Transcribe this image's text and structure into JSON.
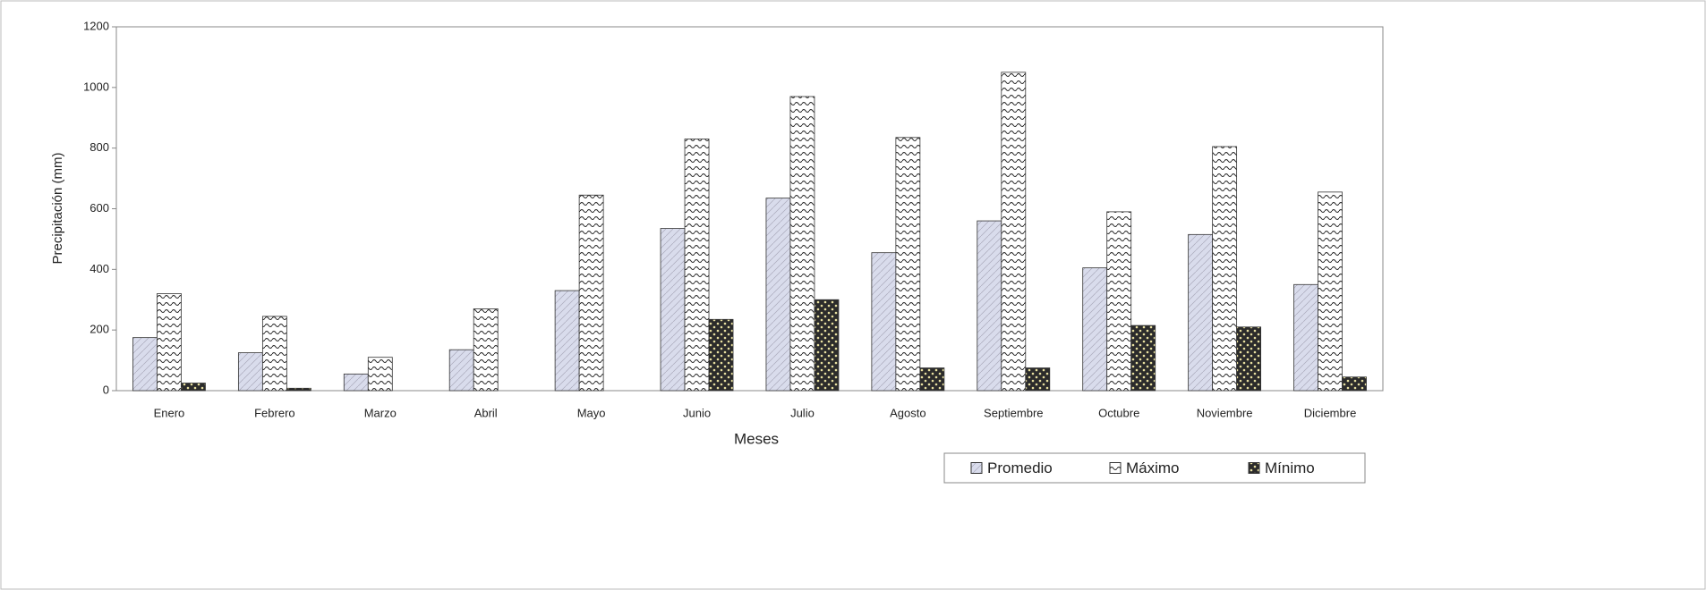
{
  "chart_data": {
    "type": "bar",
    "xlabel": "Meses",
    "ylabel": "Precipitación (mm)",
    "categories": [
      "Enero",
      "Febrero",
      "Marzo",
      "Abril",
      "Mayo",
      "Junio",
      "Julio",
      "Agosto",
      "Septiembre",
      "Octubre",
      "Noviembre",
      "Diciembre"
    ],
    "series": [
      {
        "name": "Promedio",
        "color": "#d9dcec",
        "values": [
          175,
          125,
          55,
          135,
          330,
          535,
          635,
          455,
          560,
          405,
          515,
          350
        ]
      },
      {
        "name": "Máximo",
        "color": "#ffffff",
        "values": [
          320,
          245,
          110,
          270,
          645,
          830,
          970,
          835,
          1050,
          590,
          805,
          655
        ]
      },
      {
        "name": "Mínimo",
        "color": "#2b2b2b",
        "values": [
          25,
          8,
          0,
          0,
          0,
          235,
          300,
          75,
          75,
          215,
          210,
          45
        ]
      }
    ],
    "ylim": [
      0,
      1200
    ],
    "yticks": [
      0,
      200,
      400,
      600,
      800,
      1000,
      1200
    ],
    "grid": false,
    "legend": "bottom-right"
  }
}
